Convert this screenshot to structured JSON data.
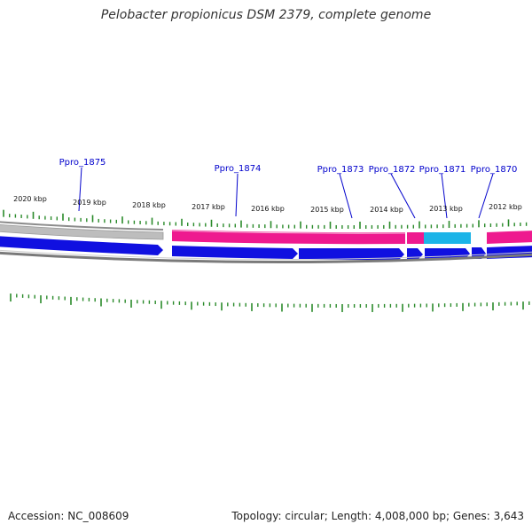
{
  "title": "Pelobacter propionicus DSM 2379, complete genome",
  "footer": {
    "accession": "Accession: NC_008609",
    "summary": "Topology: circular; Length: 4,008,000 bp; Genes: 3,643"
  },
  "colors": {
    "forward_gene": "#ee1a8f",
    "forward_gene_highlight": "#1cb4e8",
    "reverse_gene": "#1010e0",
    "backbone_outer": "#a0a0a0",
    "backbone_inner": "#808080",
    "ticks": "#2a8a2a",
    "label_text": "#0000cc"
  },
  "kbp_scale": [
    {
      "label": "2020 kbp"
    },
    {
      "label": "2019 kbp"
    },
    {
      "label": "2018 kbp"
    },
    {
      "label": "2017 kbp"
    },
    {
      "label": "2016 kbp"
    },
    {
      "label": "2015 kbp"
    },
    {
      "label": "2014 kbp"
    },
    {
      "label": "2013 kbp"
    },
    {
      "label": "2012 kbp"
    }
  ],
  "gene_labels": [
    {
      "label": "Ppro_1875"
    },
    {
      "label": "Ppro_1874"
    },
    {
      "label": "Ppro_1873"
    },
    {
      "label": "Ppro_1872"
    },
    {
      "label": "Ppro_1871"
    },
    {
      "label": "Ppro_1870"
    }
  ]
}
